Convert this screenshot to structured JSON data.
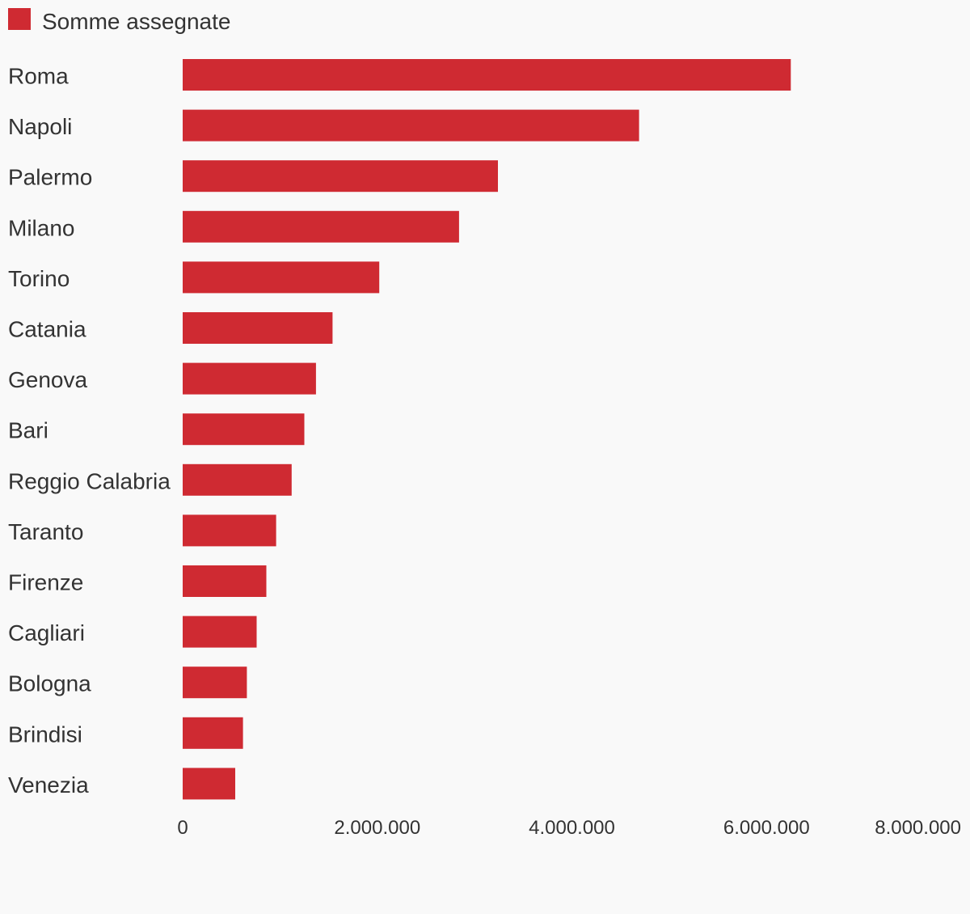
{
  "chart_data": {
    "type": "bar",
    "orientation": "horizontal",
    "categories": [
      "Roma",
      "Napoli",
      "Palermo",
      "Milano",
      "Torino",
      "Catania",
      "Genova",
      "Bari",
      "Reggio Calabria",
      "Taranto",
      "Firenze",
      "Cagliari",
      "Bologna",
      "Brindisi",
      "Venezia"
    ],
    "series": [
      {
        "name": "Somme assegnate",
        "color": "#cf2a32",
        "values": [
          6250000,
          4690000,
          3240000,
          2840000,
          2020000,
          1540000,
          1370000,
          1250000,
          1120000,
          960000,
          860000,
          760000,
          660000,
          620000,
          540000
        ]
      }
    ],
    "xlim": [
      0,
      8000000
    ],
    "xticks": [
      0,
      2000000,
      4000000,
      6000000,
      8000000
    ],
    "xtick_labels": [
      "0",
      "2.000.000",
      "4.000.000",
      "6.000.000",
      "8.000.000"
    ],
    "grid": false,
    "legend": "top-left"
  }
}
